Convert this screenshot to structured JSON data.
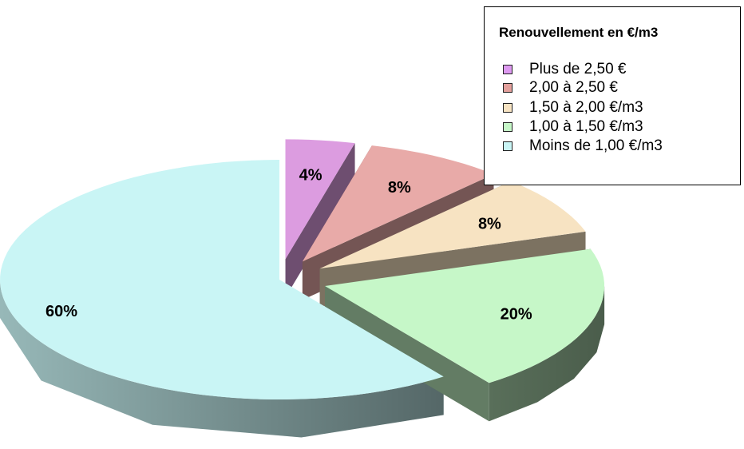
{
  "chart_data": {
    "type": "pie",
    "legend_title": "Renouvellement en €/m3",
    "legend_position": "top-right",
    "slices": [
      {
        "label": "Moins de 1,00 €/m3",
        "value": 60,
        "display": "60%",
        "color": "#c9f5f5",
        "exploded": false
      },
      {
        "label": "Plus de 2,50 €",
        "value": 4,
        "display": "4%",
        "color": "#dc9ce0",
        "exploded": true
      },
      {
        "label": "2,00 à 2,50 €",
        "value": 8,
        "display": "8%",
        "color": "#e8aaa8",
        "exploded": true
      },
      {
        "label": "1,50 à 2,00 €/m3",
        "value": 8,
        "display": "8%",
        "color": "#f7e3c2",
        "exploded": true
      },
      {
        "label": "1,00 à 1,50 €/m3",
        "value": 20,
        "display": "20%",
        "color": "#c6f7c8",
        "exploded": true
      }
    ],
    "legend_order": [
      "Plus de 2,50 €",
      "2,00 à 2,50 €",
      "1,50 à 2,00 €/m3",
      "1,00 à 1,50 €/m3",
      "Moins de 1,00 €/m3"
    ],
    "legend_swatch_colors": [
      "#dd99f0",
      "#e3a09c",
      "#f7e3c2",
      "#c6f7c8",
      "#c9f5f5"
    ]
  }
}
